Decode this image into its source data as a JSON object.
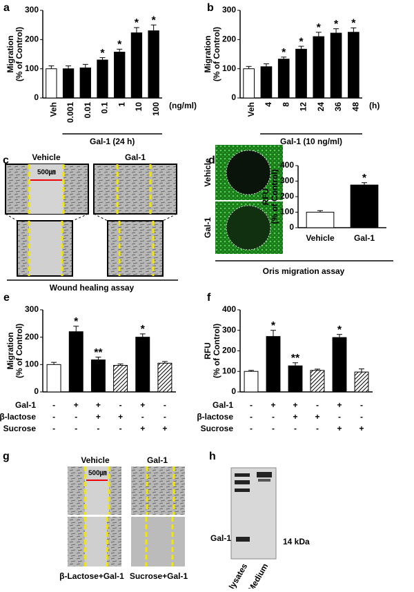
{
  "chart_data": [
    {
      "type": "bar",
      "label": "a",
      "ylabel": [
        "Migration",
        "(% of Control)"
      ],
      "categories": [
        "Veh",
        "0.001",
        "0.01",
        "0.1",
        "1",
        "10",
        "100"
      ],
      "values": [
        100,
        100,
        103,
        130,
        157,
        223,
        230
      ],
      "errors": [
        10,
        10,
        12,
        8,
        10,
        18,
        20
      ],
      "fills": [
        "white",
        "black",
        "black",
        "black",
        "black",
        "black",
        "black"
      ],
      "stars": [
        null,
        null,
        null,
        "*",
        "*",
        "*",
        "*"
      ],
      "ylim": [
        0,
        300
      ],
      "yticks": [
        0,
        100,
        200,
        300
      ],
      "xunit": "(ng/ml)",
      "group": "Gal-1 (24 h)"
    },
    {
      "type": "bar",
      "label": "b",
      "ylabel": [
        "Migration",
        "(% of Control)"
      ],
      "categories": [
        "Veh",
        "4",
        "8",
        "12",
        "24",
        "36",
        "48"
      ],
      "values": [
        100,
        107,
        133,
        167,
        210,
        222,
        225
      ],
      "errors": [
        8,
        10,
        7,
        10,
        15,
        15,
        15
      ],
      "fills": [
        "white",
        "black",
        "black",
        "black",
        "black",
        "black",
        "black"
      ],
      "stars": [
        null,
        null,
        "*",
        "*",
        "*",
        "*",
        "*"
      ],
      "ylim": [
        0,
        300
      ],
      "yticks": [
        0,
        100,
        200,
        300
      ],
      "xunit": "(h)",
      "group": "Gal-1 (10 ng/ml)"
    },
    {
      "type": "bar",
      "ylabel": [
        "RFU",
        "(% of Control)"
      ],
      "categories": [
        "Vehicle",
        "Gal-1"
      ],
      "values": [
        100,
        275
      ],
      "errors": [
        10,
        15
      ],
      "fills": [
        "white",
        "black"
      ],
      "stars": [
        null,
        "*"
      ],
      "ylim": [
        0,
        400
      ],
      "yticks": [
        0,
        100,
        200,
        300,
        400
      ]
    },
    {
      "type": "bar",
      "label": "e",
      "ylabel": [
        "Migration",
        "(% of Control)"
      ],
      "values": [
        100,
        220,
        117,
        97,
        200,
        105
      ],
      "errors": [
        8,
        20,
        10,
        5,
        12,
        6
      ],
      "fills": [
        "white",
        "black",
        "black",
        "hatch",
        "black",
        "hatch"
      ],
      "stars": [
        null,
        "*",
        "**",
        null,
        "*",
        null
      ],
      "ylim": [
        0,
        300
      ],
      "yticks": [
        0,
        100,
        200,
        300
      ],
      "conditions": [
        {
          "name": "Gal-1",
          "signs": [
            "-",
            "+",
            "+",
            "-",
            "+",
            "-"
          ]
        },
        {
          "name": "β-lactose",
          "signs": [
            "-",
            "-",
            "+",
            "+",
            "-",
            "-"
          ]
        },
        {
          "name": "Sucrose",
          "signs": [
            "-",
            "-",
            "-",
            "-",
            "+",
            "+"
          ]
        }
      ]
    },
    {
      "type": "bar",
      "label": "f",
      "ylabel": [
        "RFU",
        "(% of Control)"
      ],
      "values": [
        100,
        270,
        127,
        105,
        265,
        97
      ],
      "errors": [
        5,
        30,
        15,
        6,
        15,
        15
      ],
      "fills": [
        "white",
        "black",
        "black",
        "hatch",
        "black",
        "hatch"
      ],
      "stars": [
        null,
        "*",
        "**",
        null,
        "*",
        null
      ],
      "ylim": [
        0,
        400
      ],
      "yticks": [
        0,
        100,
        200,
        300,
        400
      ],
      "conditions": [
        {
          "name": "Gal-1",
          "signs": [
            "-",
            "+",
            "+",
            "-",
            "+",
            "-"
          ]
        },
        {
          "name": "β-lactose",
          "signs": [
            "-",
            "-",
            "+",
            "+",
            "-",
            "-"
          ]
        },
        {
          "name": "Sucrose",
          "signs": [
            "-",
            "-",
            "-",
            "-",
            "+",
            "+"
          ]
        }
      ]
    }
  ],
  "images": {
    "c": {
      "label": "c",
      "titles": [
        "Vehicle",
        "Gal-1"
      ],
      "scale": "500㎛",
      "caption": "Wound healing assay"
    },
    "d": {
      "label": "d",
      "rows": [
        "Vehicle",
        "Gal-1"
      ],
      "caption": "Oris migration assay"
    },
    "g": {
      "label": "g",
      "titles": [
        "Vehicle",
        "Gal-1"
      ],
      "scale": "500㎛",
      "captions": [
        "β-Lactose+Gal-1",
        "Sucrose+Gal-1"
      ]
    },
    "h": {
      "label": "h",
      "band": "Gal-1",
      "size": "14 kDa",
      "lanes": [
        "Cell lysates",
        "Medium"
      ]
    }
  }
}
